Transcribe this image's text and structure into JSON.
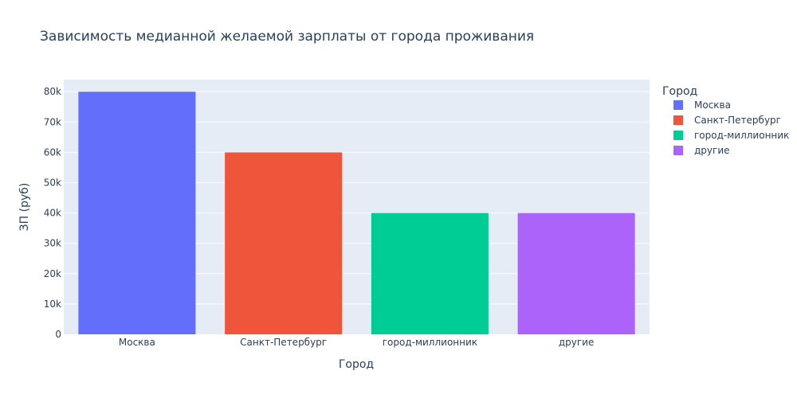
{
  "chart_data": {
    "type": "bar",
    "title": "Зависимость медианной желаемой зарплаты от города проживания",
    "xlabel": "Город",
    "ylabel": "ЗП (руб)",
    "categories": [
      "Москва",
      "Санкт-Петербург",
      "город-миллионник",
      "другие"
    ],
    "values": [
      80000,
      60000,
      40000,
      40000
    ],
    "colors": [
      "#636efa",
      "#ef553b",
      "#00cc96",
      "#ab63fa"
    ],
    "ylim": [
      0,
      84000
    ],
    "yticks": [
      0,
      10000,
      20000,
      30000,
      40000,
      50000,
      60000,
      70000,
      80000
    ],
    "ytick_labels": [
      "0",
      "10k",
      "20k",
      "30k",
      "40k",
      "50k",
      "60k",
      "70k",
      "80k"
    ],
    "grid": true,
    "plot_background": "#e5ecf6",
    "legend": {
      "title": "Город",
      "placement": "right",
      "entries": [
        "Москва",
        "Санкт-Петербург",
        "город-миллионник",
        "другие"
      ]
    }
  }
}
